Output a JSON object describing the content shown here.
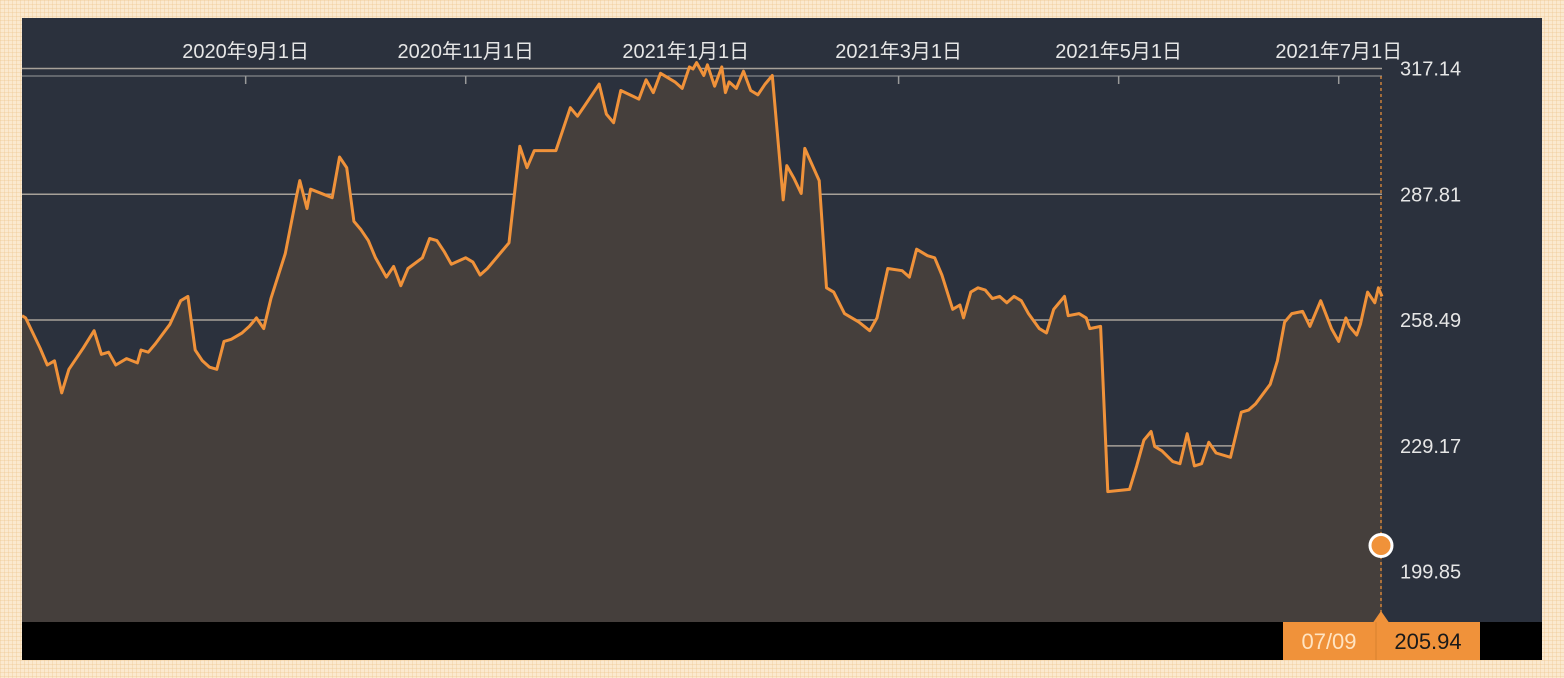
{
  "chart_data": {
    "type": "area",
    "title": "",
    "xlabel": "",
    "ylabel": "",
    "x_ticks": [
      "2020年9月1日",
      "2020年11月1日",
      "2021年1月1日",
      "2021年3月1日",
      "2021年5月1日",
      "2021年7月1日"
    ],
    "y_ticks": [
      "317.14",
      "287.81",
      "258.49",
      "229.17",
      "199.85"
    ],
    "ylim": [
      188.1,
      328.9
    ],
    "xlim": [
      "2020-07-01",
      "2021-07-13"
    ],
    "grid": true,
    "colors": {
      "line": "#f0923a",
      "area": "#453f3c",
      "background": "#2b313d",
      "footer": "#000000",
      "badge": "#f0923a"
    },
    "series": [
      {
        "points": [
          [
            "2020-07-01",
            259.5
          ],
          [
            "2020-07-02",
            259.0
          ],
          [
            "2020-07-06",
            252.0
          ],
          [
            "2020-07-08",
            248.0
          ],
          [
            "2020-07-10",
            249.0
          ],
          [
            "2020-07-12",
            241.5
          ],
          [
            "2020-07-14",
            247.0
          ],
          [
            "2020-07-18",
            252.0
          ],
          [
            "2020-07-21",
            256.0
          ],
          [
            "2020-07-23",
            250.5
          ],
          [
            "2020-07-25",
            251.0
          ],
          [
            "2020-07-27",
            248.0
          ],
          [
            "2020-07-30",
            249.5
          ],
          [
            "2020-08-02",
            248.5
          ],
          [
            "2020-08-03",
            251.5
          ],
          [
            "2020-08-05",
            251.0
          ],
          [
            "2020-08-07",
            253.0
          ],
          [
            "2020-08-11",
            257.5
          ],
          [
            "2020-08-14",
            263.0
          ],
          [
            "2020-08-16",
            264.0
          ],
          [
            "2020-08-18",
            251.5
          ],
          [
            "2020-08-20",
            249.0
          ],
          [
            "2020-08-22",
            247.5
          ],
          [
            "2020-08-24",
            247.0
          ],
          [
            "2020-08-26",
            253.5
          ],
          [
            "2020-08-28",
            254.0
          ],
          [
            "2020-08-31",
            255.5
          ],
          [
            "2020-09-02",
            257.0
          ],
          [
            "2020-09-04",
            259.0
          ],
          [
            "2020-09-06",
            256.5
          ],
          [
            "2020-09-08",
            263.5
          ],
          [
            "2020-09-12",
            274.0
          ],
          [
            "2020-09-15",
            287.0
          ],
          [
            "2020-09-16",
            291.0
          ],
          [
            "2020-09-18",
            284.5
          ],
          [
            "2020-09-19",
            289.0
          ],
          [
            "2020-09-25",
            287.0
          ],
          [
            "2020-09-27",
            296.5
          ],
          [
            "2020-09-29",
            294.0
          ],
          [
            "2020-10-01",
            281.5
          ],
          [
            "2020-10-03",
            279.5
          ],
          [
            "2020-10-05",
            277.0
          ],
          [
            "2020-10-07",
            273.0
          ],
          [
            "2020-10-10",
            268.5
          ],
          [
            "2020-10-12",
            271.0
          ],
          [
            "2020-10-14",
            266.5
          ],
          [
            "2020-10-16",
            270.5
          ],
          [
            "2020-10-20",
            273.0
          ],
          [
            "2020-10-22",
            277.5
          ],
          [
            "2020-10-24",
            277.0
          ],
          [
            "2020-10-26",
            274.5
          ],
          [
            "2020-10-28",
            271.5
          ],
          [
            "2020-11-01",
            273.0
          ],
          [
            "2020-11-03",
            272.0
          ],
          [
            "2020-11-05",
            269.0
          ],
          [
            "2020-11-07",
            270.5
          ],
          [
            "2020-11-11",
            274.5
          ],
          [
            "2020-11-13",
            276.5
          ],
          [
            "2020-11-16",
            299.0
          ],
          [
            "2020-11-18",
            294.0
          ],
          [
            "2020-11-20",
            298.0
          ],
          [
            "2020-11-26",
            298.0
          ],
          [
            "2020-11-30",
            308.0
          ],
          [
            "2020-12-02",
            306.0
          ],
          [
            "2020-12-04",
            308.5
          ],
          [
            "2020-12-08",
            313.5
          ],
          [
            "2020-12-10",
            306.5
          ],
          [
            "2020-12-12",
            304.5
          ],
          [
            "2020-12-14",
            312.0
          ],
          [
            "2020-12-19",
            310.0
          ],
          [
            "2020-12-21",
            314.5
          ],
          [
            "2020-12-23",
            311.5
          ],
          [
            "2020-12-25",
            316.0
          ],
          [
            "2020-12-29",
            314.0
          ],
          [
            "2020-12-31",
            312.5
          ],
          [
            "2021-01-02",
            317.5
          ],
          [
            "2021-01-03",
            317.0
          ],
          [
            "2021-01-04",
            318.5
          ],
          [
            "2021-01-06",
            315.5
          ],
          [
            "2021-01-07",
            318.0
          ],
          [
            "2021-01-09",
            313.0
          ],
          [
            "2021-01-11",
            317.5
          ],
          [
            "2021-01-12",
            311.5
          ],
          [
            "2021-01-13",
            314.0
          ],
          [
            "2021-01-15",
            312.5
          ],
          [
            "2021-01-17",
            316.5
          ],
          [
            "2021-01-19",
            312.0
          ],
          [
            "2021-01-21",
            311.0
          ],
          [
            "2021-01-23",
            313.5
          ],
          [
            "2021-01-25",
            315.5
          ],
          [
            "2021-01-28",
            286.5
          ],
          [
            "2021-01-29",
            294.5
          ],
          [
            "2021-01-31",
            291.5
          ],
          [
            "2021-02-02",
            288.0
          ],
          [
            "2021-02-03",
            298.5
          ],
          [
            "2021-02-07",
            291.0
          ],
          [
            "2021-02-09",
            266.0
          ],
          [
            "2021-02-11",
            265.0
          ],
          [
            "2021-02-14",
            260.0
          ],
          [
            "2021-02-18",
            258.0
          ],
          [
            "2021-02-21",
            256.0
          ],
          [
            "2021-02-23",
            259.0
          ],
          [
            "2021-02-26",
            270.5
          ],
          [
            "2021-03-02",
            270.0
          ],
          [
            "2021-03-04",
            268.5
          ],
          [
            "2021-03-06",
            275.0
          ],
          [
            "2021-03-09",
            273.5
          ],
          [
            "2021-03-11",
            273.0
          ],
          [
            "2021-03-13",
            269.0
          ],
          [
            "2021-03-16",
            261.0
          ],
          [
            "2021-03-18",
            262.0
          ],
          [
            "2021-03-19",
            259.0
          ],
          [
            "2021-03-21",
            265.0
          ],
          [
            "2021-03-23",
            266.0
          ],
          [
            "2021-03-25",
            265.5
          ],
          [
            "2021-03-27",
            263.5
          ],
          [
            "2021-03-29",
            264.0
          ],
          [
            "2021-03-31",
            262.5
          ],
          [
            "2021-04-02",
            264.0
          ],
          [
            "2021-04-04",
            263.0
          ],
          [
            "2021-04-06",
            260.0
          ],
          [
            "2021-04-09",
            256.5
          ],
          [
            "2021-04-11",
            255.5
          ],
          [
            "2021-04-13",
            261.0
          ],
          [
            "2021-04-16",
            264.0
          ],
          [
            "2021-04-17",
            259.5
          ],
          [
            "2021-04-20",
            260.0
          ],
          [
            "2021-04-22",
            259.0
          ],
          [
            "2021-04-23",
            256.5
          ],
          [
            "2021-04-26",
            257.0
          ],
          [
            "2021-04-28",
            218.5
          ],
          [
            "2021-05-04",
            219.0
          ],
          [
            "2021-05-06",
            224.5
          ],
          [
            "2021-05-08",
            230.5
          ],
          [
            "2021-05-10",
            232.5
          ],
          [
            "2021-05-11",
            229.0
          ],
          [
            "2021-05-13",
            228.0
          ],
          [
            "2021-05-16",
            225.5
          ],
          [
            "2021-05-18",
            225.0
          ],
          [
            "2021-05-20",
            232.0
          ],
          [
            "2021-05-22",
            224.5
          ],
          [
            "2021-05-24",
            225.0
          ],
          [
            "2021-05-26",
            230.0
          ],
          [
            "2021-05-28",
            227.5
          ],
          [
            "2021-06-01",
            226.5
          ],
          [
            "2021-06-04",
            237.0
          ],
          [
            "2021-06-06",
            237.5
          ],
          [
            "2021-06-08",
            239.0
          ],
          [
            "2021-06-12",
            243.5
          ],
          [
            "2021-06-14",
            249.0
          ],
          [
            "2021-06-16",
            258.0
          ],
          [
            "2021-06-18",
            260.0
          ],
          [
            "2021-06-21",
            260.5
          ],
          [
            "2021-06-23",
            257.0
          ],
          [
            "2021-06-26",
            263.0
          ],
          [
            "2021-06-29",
            256.5
          ],
          [
            "2021-07-01",
            253.5
          ],
          [
            "2021-07-03",
            259.0
          ],
          [
            "2021-07-04",
            257.0
          ],
          [
            "2021-07-06",
            255.0
          ],
          [
            "2021-07-07",
            257.5
          ],
          [
            "2021-07-09",
            265.0
          ],
          [
            "2021-07-11",
            262.5
          ],
          [
            "2021-07-12",
            266.0
          ],
          [
            "2021-07-13",
            264.0
          ]
        ]
      }
    ]
  },
  "marker": {
    "date_label": "07/09",
    "value_label": "205.94"
  }
}
